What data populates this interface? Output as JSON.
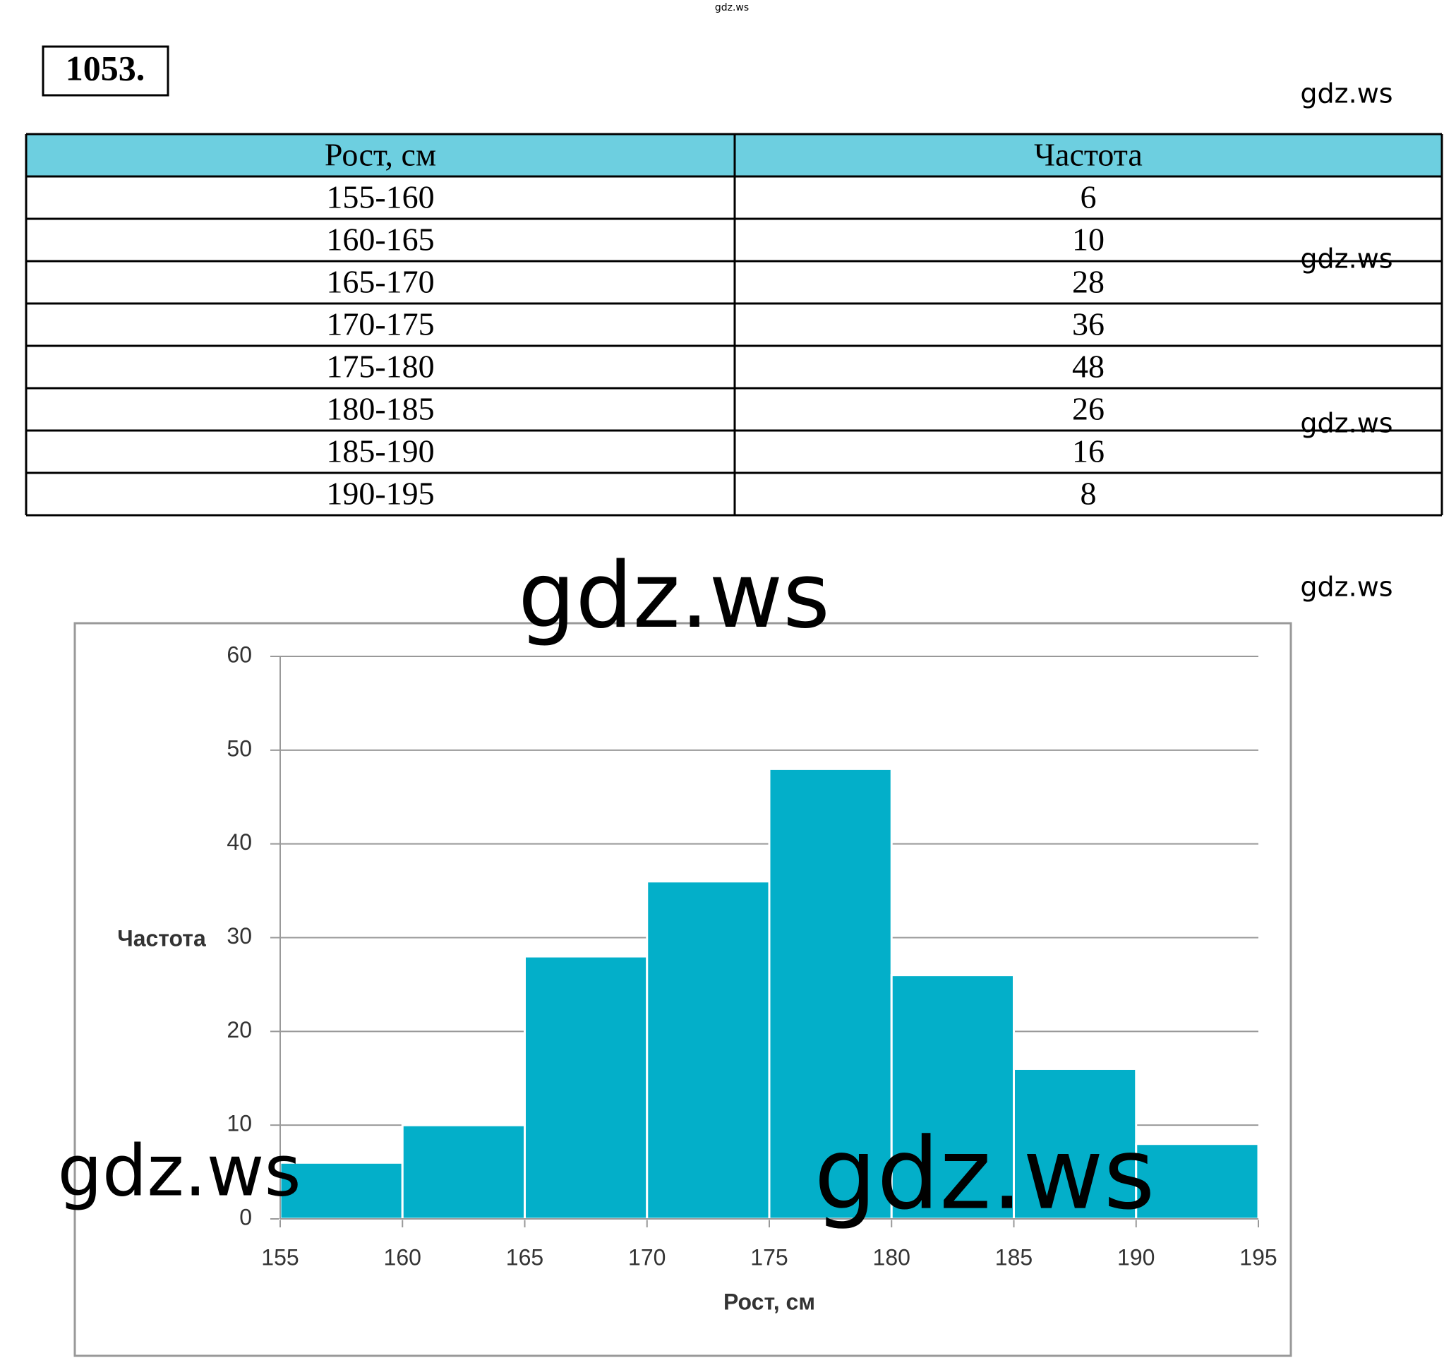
{
  "problem_number": "1053.",
  "table": {
    "header": [
      "Рост, см",
      "Частота"
    ],
    "rows": [
      [
        "155-160",
        "6"
      ],
      [
        "160-165",
        "10"
      ],
      [
        "165-170",
        "28"
      ],
      [
        "170-175",
        "36"
      ],
      [
        "175-180",
        "48"
      ],
      [
        "180-185",
        "26"
      ],
      [
        "185-190",
        "16"
      ],
      [
        "190-195",
        "8"
      ]
    ]
  },
  "watermarks": [
    "gdz.ws",
    "gdz.ws",
    "gdz.ws",
    "gdz.ws",
    "gdz.ws",
    "gdz.ws",
    "gdz.ws",
    "gdz.ws"
  ],
  "chart_data": {
    "type": "histogram",
    "xlabel": "Рост, см",
    "ylabel": "Частота",
    "bins": [
      155,
      160,
      165,
      170,
      175,
      180,
      185,
      190,
      195
    ],
    "values": [
      6,
      10,
      28,
      36,
      48,
      26,
      16,
      8
    ],
    "color": "#03afc9",
    "xlim": [
      155,
      195
    ],
    "xticks": [
      155,
      160,
      165,
      170,
      175,
      180,
      185,
      190,
      195
    ],
    "ylim": [
      0,
      60
    ],
    "yticks": [
      0,
      10,
      20,
      30,
      40,
      50,
      60
    ],
    "grid": true
  }
}
